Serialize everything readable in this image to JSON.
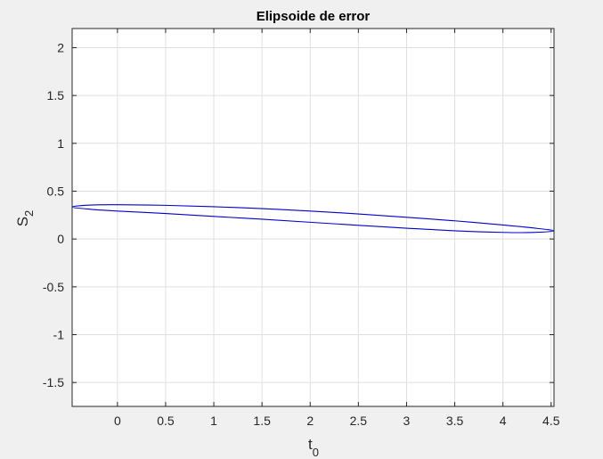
{
  "window": {
    "background": "#f0f0f0"
  },
  "chart_data": {
    "type": "line",
    "title": "Elipsoide de error",
    "xlabel": "t",
    "xlabel_subscript": "0",
    "ylabel": "S",
    "ylabel_subscript": "2",
    "xlim": [
      -0.47,
      4.53
    ],
    "ylim": [
      -1.75,
      2.2
    ],
    "xticks": [
      0,
      0.5,
      1,
      1.5,
      2,
      2.5,
      3,
      3.5,
      4,
      4.5
    ],
    "xtick_labels": [
      "0",
      "0.5",
      "1",
      "1.5",
      "2",
      "2.5",
      "3",
      "3.5",
      "4",
      "4.5"
    ],
    "yticks": [
      -1.5,
      -1,
      -0.5,
      0,
      0.5,
      1,
      1.5,
      2
    ],
    "ytick_labels": [
      "-1.5",
      "-1",
      "-0.5",
      "0",
      "0.5",
      "1",
      "1.5",
      "2"
    ],
    "grid": true,
    "series": [
      {
        "style": "closed-curve",
        "color": "#0000cc",
        "x": [
          -0.47,
          -0.28,
          0.0,
          0.5,
          1.0,
          1.5,
          2.0,
          2.5,
          3.0,
          3.5,
          4.0,
          4.3,
          4.53,
          4.3,
          4.0,
          3.5,
          3.0,
          2.5,
          2.0,
          1.5,
          1.0,
          0.5,
          0.0,
          -0.28,
          -0.47
        ],
        "y": [
          0.335,
          0.355,
          0.358,
          0.352,
          0.337,
          0.318,
          0.292,
          0.262,
          0.227,
          0.19,
          0.146,
          0.117,
          0.085,
          0.068,
          0.069,
          0.086,
          0.113,
          0.143,
          0.175,
          0.207,
          0.236,
          0.266,
          0.292,
          0.311,
          0.335
        ]
      }
    ]
  }
}
